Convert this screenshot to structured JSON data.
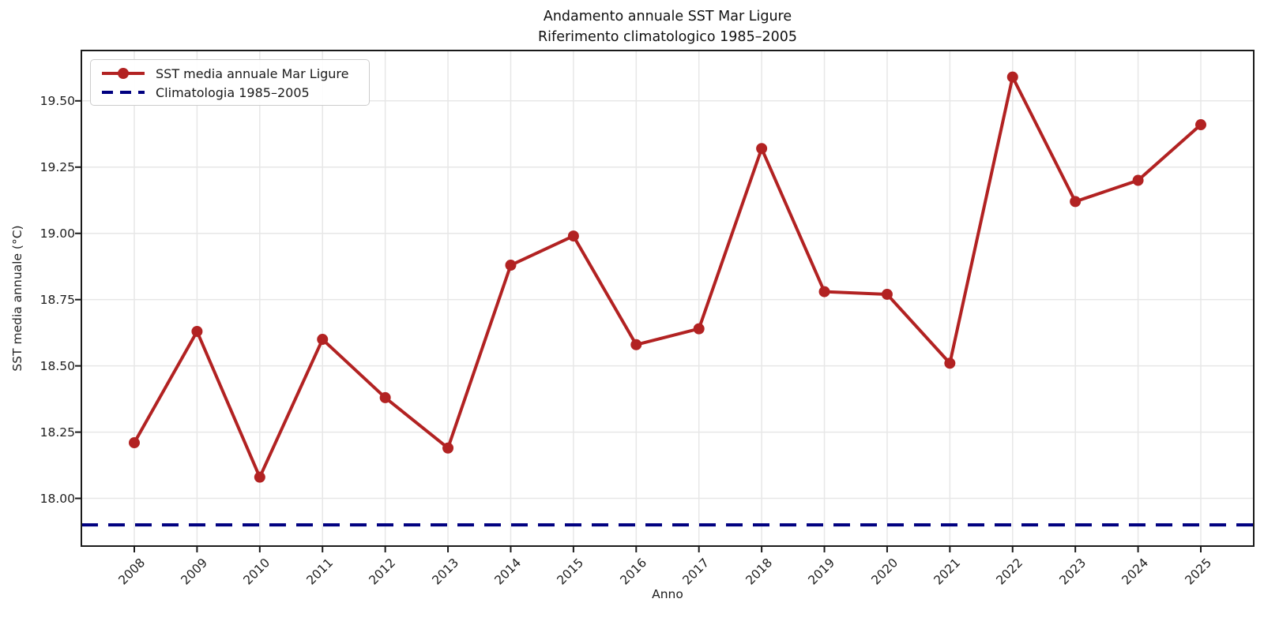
{
  "header": {
    "title": "Andamento annuale SST Mar Ligure",
    "subtitle": "Riferimento climatologico 1985–2005"
  },
  "legend": {
    "series": "SST media annuale Mar Ligure",
    "climatology": "Climatologia 1985–2005"
  },
  "colors": {
    "series": "#b22222",
    "climatology": "#000080",
    "grid": "#e7e7e7",
    "spine": "#1a1a1a",
    "text": "#202020"
  },
  "chart_data": {
    "type": "line",
    "title": "Andamento annuale SST Mar Ligure",
    "subtitle": "Riferimento climatologico 1985–2005",
    "xlabel": "Anno",
    "ylabel": "SST media annuale (°C)",
    "x": [
      2008,
      2009,
      2010,
      2011,
      2012,
      2013,
      2014,
      2015,
      2016,
      2017,
      2018,
      2019,
      2020,
      2021,
      2022,
      2023,
      2024,
      2025
    ],
    "series": [
      {
        "name": "SST media annuale Mar Ligure",
        "values": [
          18.21,
          18.63,
          18.08,
          18.6,
          18.38,
          18.19,
          18.88,
          18.99,
          18.58,
          18.64,
          19.32,
          18.78,
          18.77,
          18.51,
          19.59,
          19.12,
          19.2,
          19.41
        ],
        "color": "#b22222",
        "style": "solid",
        "marker": "circle"
      }
    ],
    "reference_line": {
      "name": "Climatologia 1985–2005",
      "value": 17.9,
      "color": "#000080",
      "style": "dashed"
    },
    "ylim": [
      17.82,
      19.69
    ],
    "yticks": [
      18.0,
      18.25,
      18.5,
      18.75,
      19.0,
      19.25,
      19.5
    ],
    "ytick_format": "2-decimals",
    "xtick_rotation": 45,
    "grid": true,
    "legend_position": "upper-left"
  }
}
